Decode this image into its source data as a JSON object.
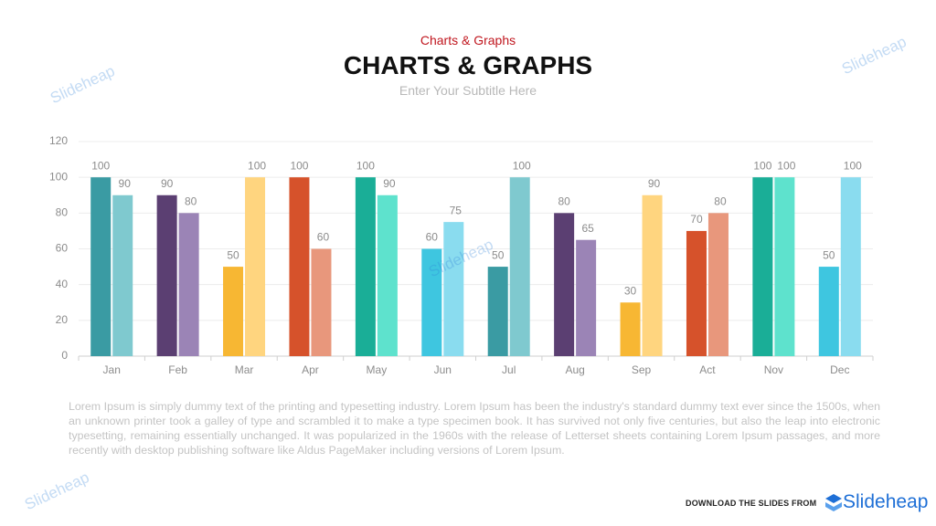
{
  "chart_data": {
    "type": "bar",
    "kicker": "Charts & Graphs",
    "title": "CHARTS & GRAPHS",
    "subtitle": "Enter Your Subtitle Here",
    "categories": [
      "Jan",
      "Feb",
      "Mar",
      "Apr",
      "May",
      "Jun",
      "Jul",
      "Aug",
      "Sep",
      "Act",
      "Nov",
      "Dec"
    ],
    "series": [
      {
        "values": [
          100,
          90,
          50,
          100,
          100,
          60,
          50,
          80,
          30,
          70,
          100,
          50
        ],
        "colors": [
          "#3a9ba3",
          "#5b3f72",
          "#f7b733",
          "#d6522b",
          "#1aae97",
          "#3ec6e0",
          "#3a9ba3",
          "#5b3f72",
          "#f7b733",
          "#d6522b",
          "#1aae97",
          "#3ec6e0"
        ]
      },
      {
        "values": [
          90,
          80,
          100,
          60,
          90,
          75,
          100,
          65,
          90,
          80,
          100,
          100
        ],
        "colors": [
          "#7fc9cf",
          "#9b84b6",
          "#ffd57f",
          "#e8977c",
          "#5ee2cd",
          "#8adcef",
          "#7fc9cf",
          "#9b84b6",
          "#ffd57f",
          "#e8977c",
          "#5ee2cd",
          "#8adcef"
        ]
      }
    ],
    "ylim": [
      0,
      120
    ],
    "yticks": [
      0,
      20,
      40,
      60,
      80,
      100,
      120
    ],
    "grid": true
  },
  "paragraph": "Lorem Ipsum is simply dummy text of the printing and typesetting industry. Lorem Ipsum has been the industry's standard dummy text ever since the 1500s, when an unknown printer took a galley of type and scrambled it to make a type specimen book. It has survived not only five centuries, but also the leap into electronic typesetting, remaining essentially unchanged. It was popularized in the 1960s with the release of Letterset sheets containing Lorem Ipsum passages, and more recently with desktop publishing software like Aldus PageMaker including versions of Lorem Ipsum.",
  "footer": {
    "download": "DOWNLOAD THE SLIDES FROM",
    "brand": "Slideheap"
  },
  "watermark": "Slideheap"
}
